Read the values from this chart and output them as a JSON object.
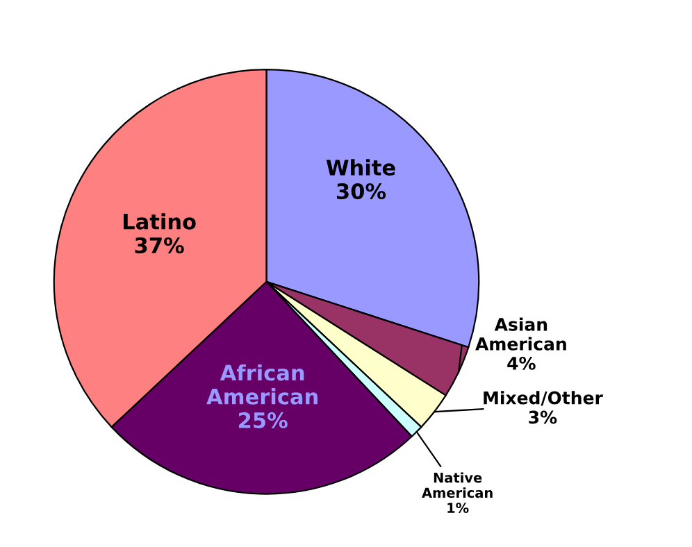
{
  "chart_data": {
    "type": "pie",
    "categories": [
      "White",
      "Asian American",
      "Mixed/Other",
      "Native American",
      "African American",
      "Latino"
    ],
    "values": [
      30,
      4,
      3,
      1,
      25,
      37
    ],
    "colors": [
      "#9999ff",
      "#993366",
      "#ffffcc",
      "#ccffff",
      "#660066",
      "#ff8080"
    ],
    "value_labels": [
      "30%",
      "4%",
      "3%",
      "1%",
      "25%",
      "37%"
    ]
  }
}
